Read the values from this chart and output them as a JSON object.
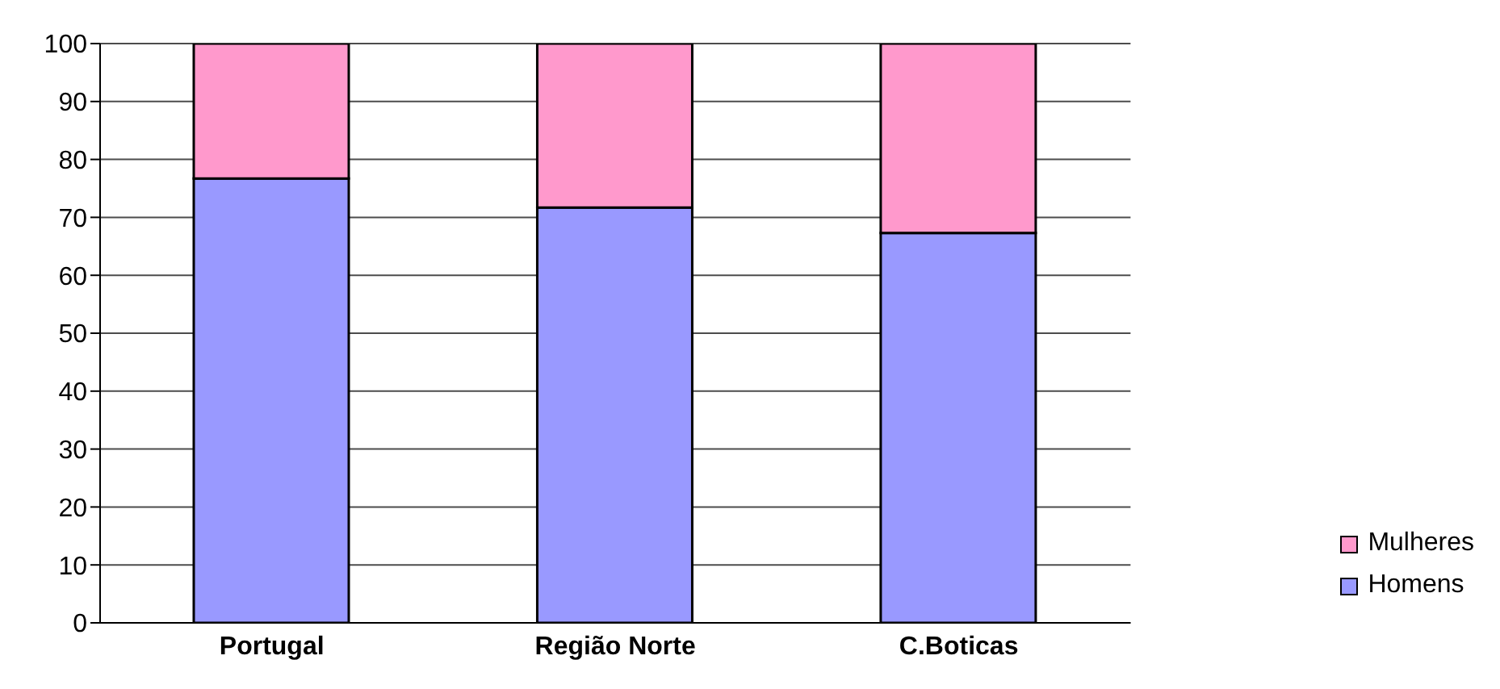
{
  "chart_data": {
    "type": "bar",
    "stacked": true,
    "categories": [
      "Portugal",
      "Região Norte",
      "C.Boticas"
    ],
    "series": [
      {
        "name": "Homens",
        "color": "#9999ff",
        "values": [
          76.7,
          71.7,
          67.3
        ]
      },
      {
        "name": "Mulheres",
        "color": "#ff99cc",
        "values": [
          23.3,
          28.3,
          32.7
        ]
      }
    ],
    "ylim": [
      0,
      100
    ],
    "yticks": [
      0,
      10,
      20,
      30,
      40,
      50,
      60,
      70,
      80,
      90,
      100
    ],
    "grid": "y",
    "legend": "right"
  }
}
